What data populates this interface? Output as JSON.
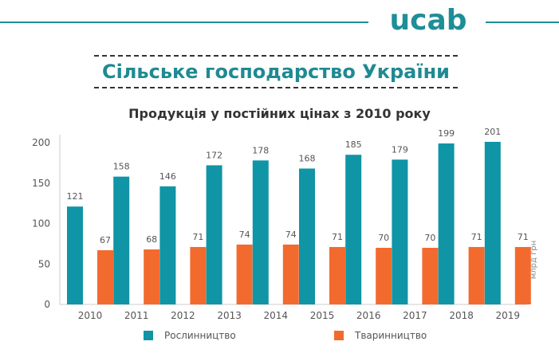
{
  "brand": {
    "logo_text": "ucab",
    "accent_color": "#1e8e98"
  },
  "banner": {
    "title": "Сільське господарство України"
  },
  "chart_data": {
    "type": "bar",
    "title": "Продукція у постійних цінах з 2010 року",
    "ylabel": "млрд грн",
    "xlabel": "",
    "ylim": [
      0,
      200
    ],
    "yticks": [
      0,
      50,
      100,
      150,
      200
    ],
    "grid": false,
    "legend_position": "bottom",
    "categories": [
      "2010",
      "2011",
      "2012",
      "2013",
      "2014",
      "2015",
      "2016",
      "2017",
      "2018",
      "2019"
    ],
    "series": [
      {
        "name": "Рослинництво",
        "color": "#0f95a6",
        "values": [
          121,
          158,
          146,
          172,
          178,
          168,
          185,
          179,
          199,
          201
        ]
      },
      {
        "name": "Тваринництво",
        "color": "#f26a2e",
        "values": [
          67,
          68,
          71,
          74,
          74,
          71,
          70,
          70,
          71,
          71
        ]
      }
    ]
  }
}
